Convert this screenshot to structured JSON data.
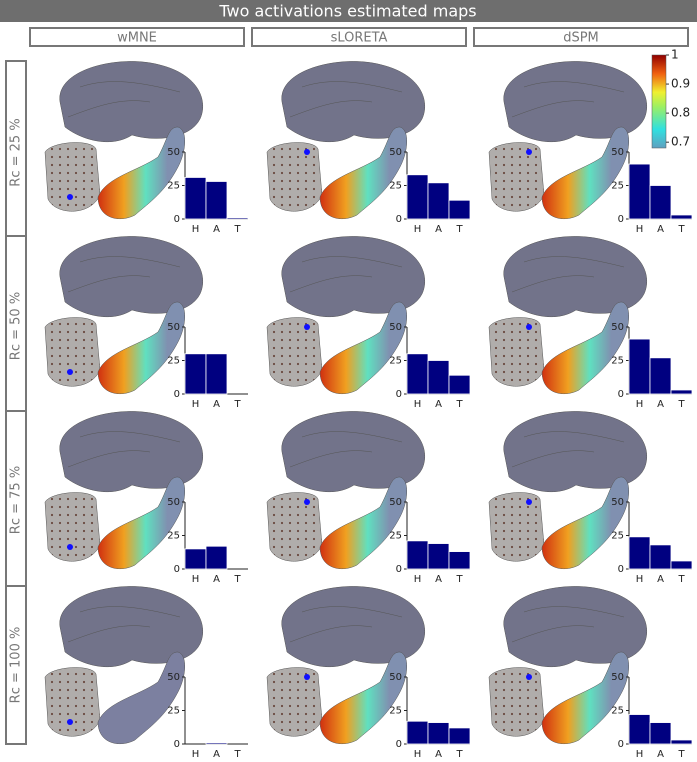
{
  "title": "Two activations estimated maps",
  "columns": [
    "wMNE",
    "sLORETA",
    "dSPM"
  ],
  "rows": [
    "Rc = 25 %",
    "Rc = 50 %",
    "Rc = 75 %",
    "Rc = 100 %"
  ],
  "colorbar": {
    "ylim": [
      0.68,
      1
    ],
    "yticks": [
      1,
      0.9,
      0.8,
      0.7
    ]
  },
  "chart_data": [
    {
      "type": "bar",
      "categories": [
        "H",
        "A",
        "T"
      ],
      "values": [
        31,
        28,
        1
      ],
      "color": "#000080",
      "ylim": [
        0,
        50
      ],
      "yticks": [
        0,
        25,
        50
      ]
    },
    {
      "type": "bar",
      "categories": [
        "H",
        "A",
        "T"
      ],
      "values": [
        33,
        27,
        14
      ],
      "color": "#000080",
      "ylim": [
        0,
        50
      ],
      "yticks": [
        0,
        25,
        50
      ]
    },
    {
      "type": "bar",
      "categories": [
        "H",
        "A",
        "T"
      ],
      "values": [
        41,
        25,
        3
      ],
      "color": "#000080",
      "ylim": [
        0,
        50
      ],
      "yticks": [
        0,
        25,
        50
      ]
    },
    {
      "type": "bar",
      "categories": [
        "H",
        "A",
        "T"
      ],
      "values": [
        30,
        30,
        0
      ],
      "color": "#000080",
      "ylim": [
        0,
        50
      ],
      "yticks": [
        0,
        25,
        50
      ]
    },
    {
      "type": "bar",
      "categories": [
        "H",
        "A",
        "T"
      ],
      "values": [
        30,
        25,
        14
      ],
      "color": "#000080",
      "ylim": [
        0,
        50
      ],
      "yticks": [
        0,
        25,
        50
      ]
    },
    {
      "type": "bar",
      "categories": [
        "H",
        "A",
        "T"
      ],
      "values": [
        41,
        27,
        3
      ],
      "color": "#000080",
      "ylim": [
        0,
        50
      ],
      "yticks": [
        0,
        25,
        50
      ]
    },
    {
      "type": "bar",
      "categories": [
        "H",
        "A",
        "T"
      ],
      "values": [
        15,
        17,
        0
      ],
      "color": "#000080",
      "ylim": [
        0,
        50
      ],
      "yticks": [
        0,
        25,
        50
      ]
    },
    {
      "type": "bar",
      "categories": [
        "H",
        "A",
        "T"
      ],
      "values": [
        21,
        19,
        13
      ],
      "color": "#000080",
      "ylim": [
        0,
        50
      ],
      "yticks": [
        0,
        25,
        50
      ]
    },
    {
      "type": "bar",
      "categories": [
        "H",
        "A",
        "T"
      ],
      "values": [
        24,
        18,
        6
      ],
      "color": "#000080",
      "ylim": [
        0,
        50
      ],
      "yticks": [
        0,
        25,
        50
      ]
    },
    {
      "type": "bar",
      "categories": [
        "H",
        "A",
        "T"
      ],
      "values": [
        0,
        1,
        0
      ],
      "color": "#000080",
      "ylim": [
        0,
        50
      ],
      "yticks": [
        0,
        25,
        50
      ]
    },
    {
      "type": "bar",
      "categories": [
        "H",
        "A",
        "T"
      ],
      "values": [
        17,
        16,
        12
      ],
      "color": "#000080",
      "ylim": [
        0,
        50
      ],
      "yticks": [
        0,
        25,
        50
      ]
    },
    {
      "type": "bar",
      "categories": [
        "H",
        "A",
        "T"
      ],
      "values": [
        22,
        16,
        3
      ],
      "color": "#000080",
      "ylim": [
        0,
        50
      ],
      "yticks": [
        0,
        25,
        50
      ]
    }
  ]
}
